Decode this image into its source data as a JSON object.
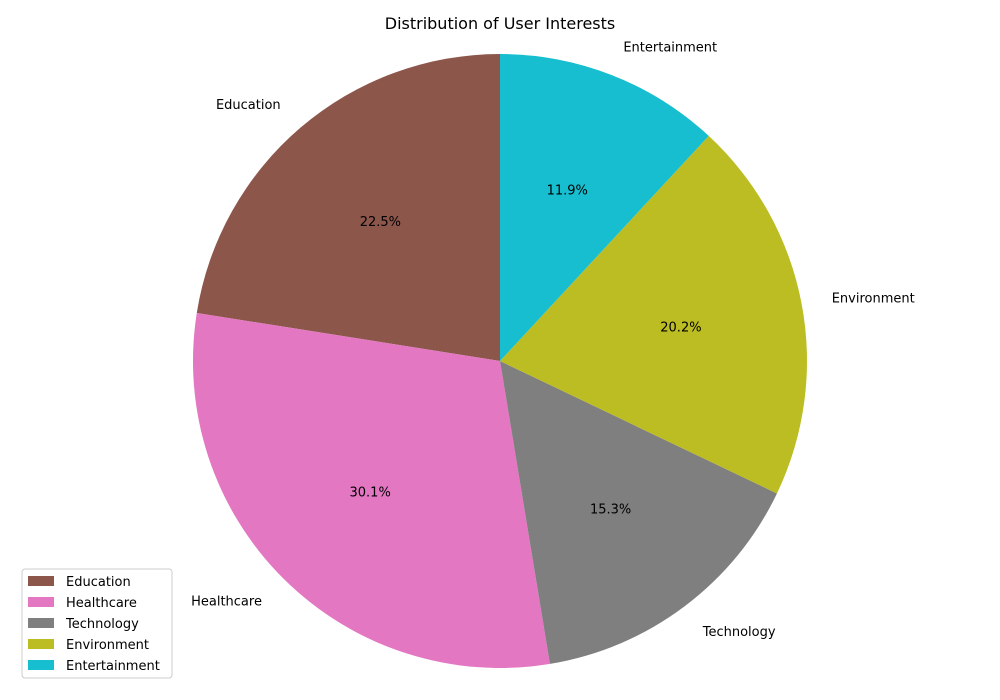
{
  "chart_data": {
    "type": "pie",
    "title": "Distribution of User Interests",
    "slices": [
      {
        "label": "Education",
        "value": 22.5,
        "pct_text": "22.5%",
        "color": "#8c564b"
      },
      {
        "label": "Healthcare",
        "value": 30.1,
        "pct_text": "30.1%",
        "color": "#e377c2"
      },
      {
        "label": "Technology",
        "value": 15.3,
        "pct_text": "15.3%",
        "color": "#7f7f7f"
      },
      {
        "label": "Environment",
        "value": 20.2,
        "pct_text": "20.2%",
        "color": "#bcbd22"
      },
      {
        "label": "Entertainment",
        "value": 11.9,
        "pct_text": "11.9%",
        "color": "#17becf"
      }
    ],
    "start_angle_deg": 90,
    "direction": "counterclockwise",
    "legend_position": "lower-left"
  }
}
